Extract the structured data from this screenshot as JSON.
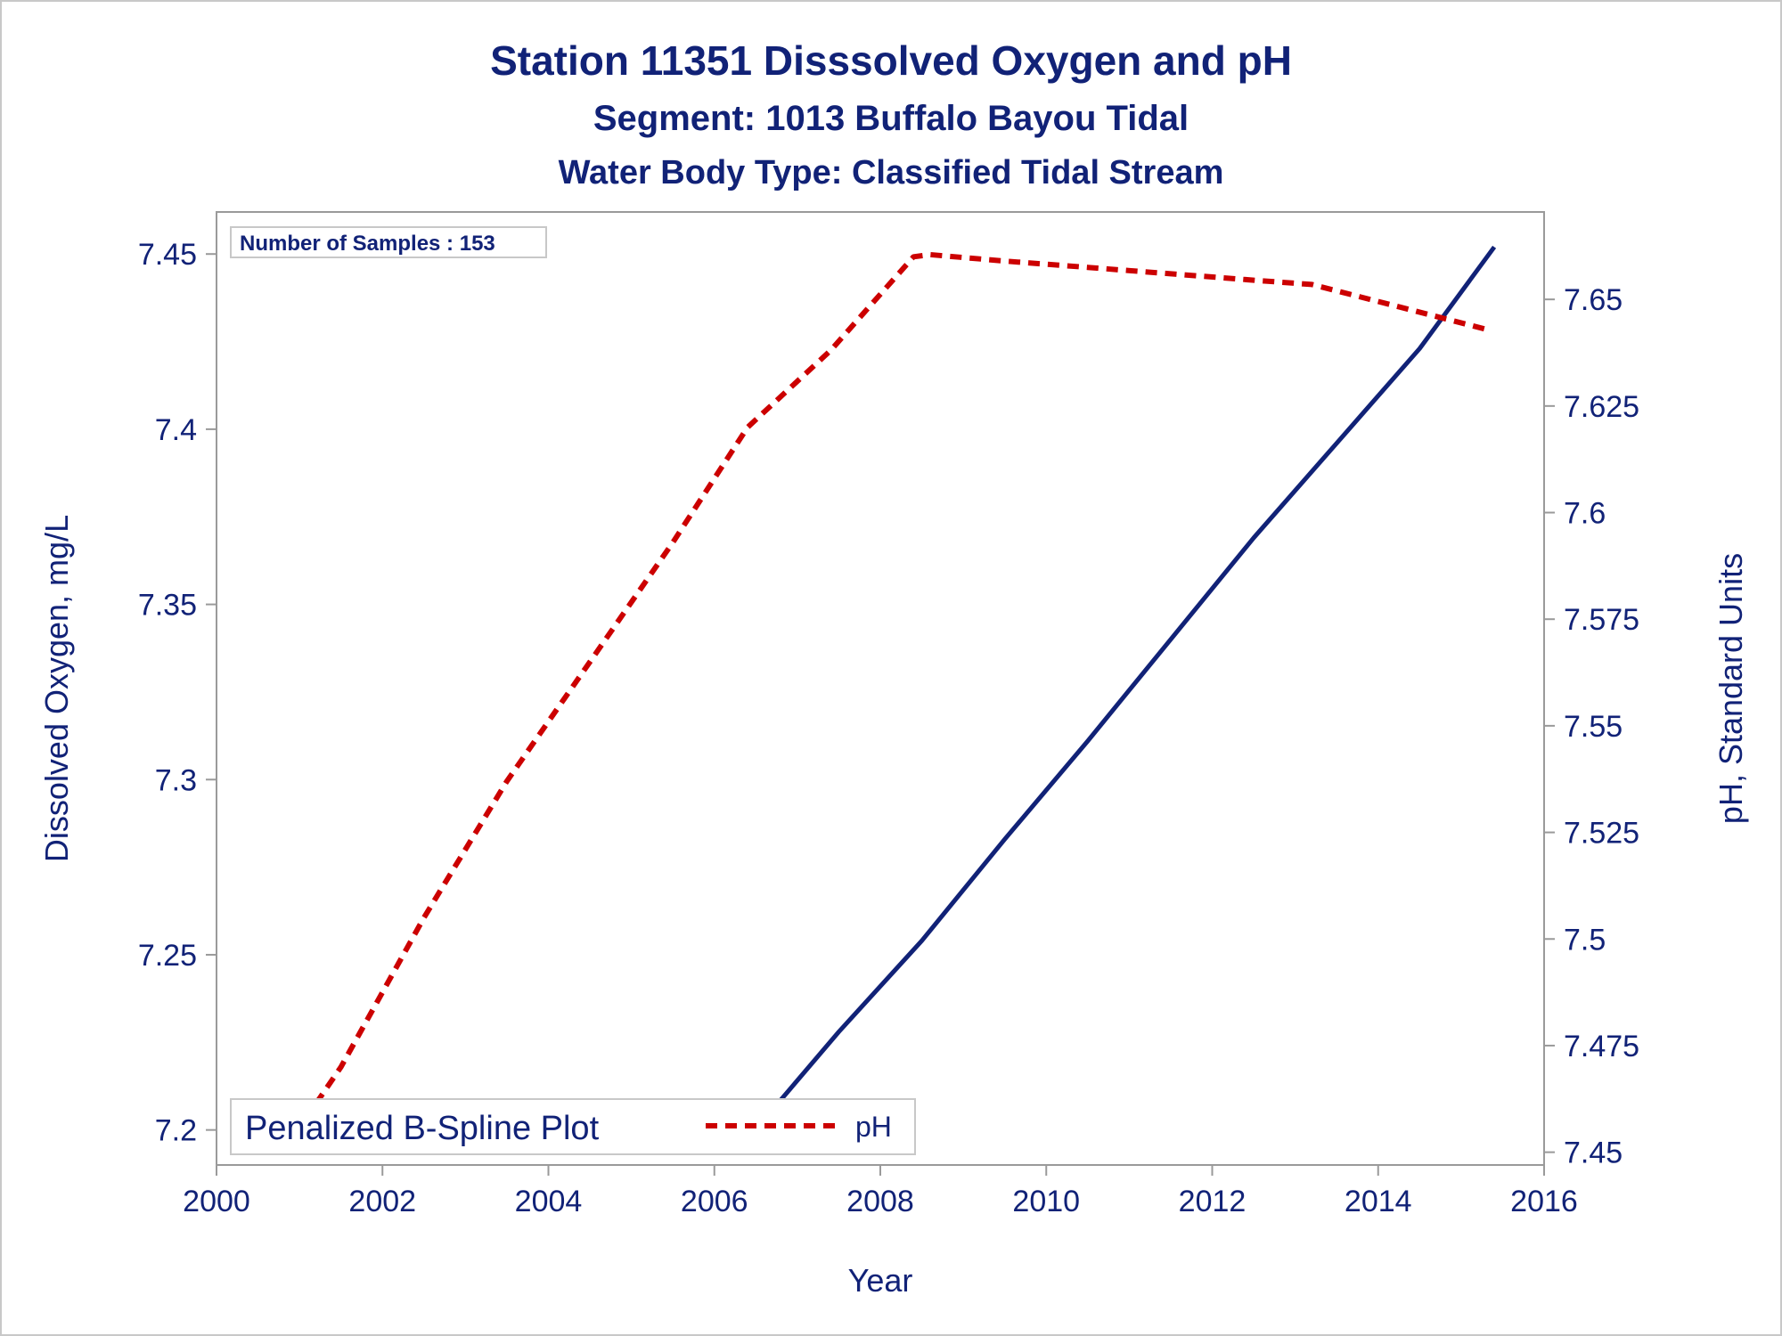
{
  "chart_data": {
    "type": "line",
    "title": "Station 11351   Disssolved Oxygen and pH",
    "subtitle": "Segment: 1013  Buffalo Bayou Tidal",
    "subtitle2": "Water Body Type: Classified Tidal Stream",
    "xlabel": "Year",
    "ylabel": "Dissolved Oxygen, mg/L",
    "y2label": "pH, Standard Units",
    "xlim": [
      2000,
      2016
    ],
    "ylim": [
      7.19,
      7.462
    ],
    "y2lim": [
      7.447,
      7.6705
    ],
    "x_ticks": [
      "2000",
      "2002",
      "2004",
      "2006",
      "2008",
      "2010",
      "2012",
      "2014",
      "2016"
    ],
    "y_ticks": [
      "7.2",
      "7.25",
      "7.3",
      "7.35",
      "7.4",
      "7.45"
    ],
    "y2_ticks": [
      "7.45",
      "7.475",
      "7.5",
      "7.525",
      "7.55",
      "7.575",
      "7.6",
      "7.625",
      "7.65"
    ],
    "annotation": "Number of Samples : 153",
    "legend_title": "Penalized B-Spline Plot",
    "legend_position": "bottom-left inside plot",
    "series": [
      {
        "name": "",
        "axis": "left",
        "color": "#112277",
        "style": "solid",
        "x": [
          2000.8,
          2001.6,
          2002.5,
          2003.3,
          2004.2,
          2005.0,
          2005.8,
          2006.4,
          2006.6,
          2007.5,
          2008.5,
          2009.5,
          2010.5,
          2011.5,
          2012.5,
          2013.5,
          2014.5,
          2015.4
        ],
        "y": [
          7.198,
          7.1965,
          7.197,
          7.197,
          7.1965,
          7.1975,
          7.1993,
          7.2005,
          7.203,
          7.228,
          7.254,
          7.283,
          7.311,
          7.34,
          7.369,
          7.396,
          7.423,
          7.452
        ]
      },
      {
        "name": "pH",
        "axis": "right",
        "color": "#cc0000",
        "style": "dashed",
        "x": [
          2000.8,
          2001.5,
          2002.5,
          2003.5,
          2004.5,
          2005.5,
          2006.4,
          2007.4,
          2008.4,
          2008.6,
          2009.5,
          2010.5,
          2011.5,
          2012.5,
          2013.2,
          2014.0,
          2015.3
        ],
        "y": [
          7.45,
          7.47,
          7.505,
          7.537,
          7.565,
          7.593,
          7.62,
          7.638,
          7.66,
          7.6605,
          7.659,
          7.6575,
          7.656,
          7.6545,
          7.6535,
          7.6495,
          7.643
        ]
      }
    ]
  }
}
